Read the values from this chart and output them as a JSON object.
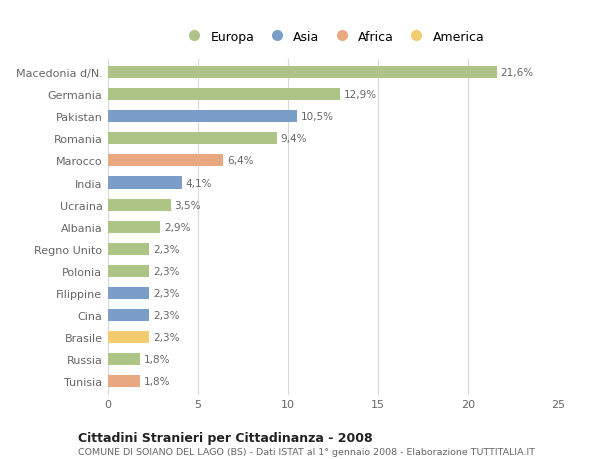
{
  "categories": [
    "Macedonia d/N.",
    "Germania",
    "Pakistan",
    "Romania",
    "Marocco",
    "India",
    "Ucraina",
    "Albania",
    "Regno Unito",
    "Polonia",
    "Filippine",
    "Cina",
    "Brasile",
    "Russia",
    "Tunisia"
  ],
  "values": [
    21.6,
    12.9,
    10.5,
    9.4,
    6.4,
    4.1,
    3.5,
    2.9,
    2.3,
    2.3,
    2.3,
    2.3,
    2.3,
    1.8,
    1.8
  ],
  "labels": [
    "21,6%",
    "12,9%",
    "10,5%",
    "9,4%",
    "6,4%",
    "4,1%",
    "3,5%",
    "2,9%",
    "2,3%",
    "2,3%",
    "2,3%",
    "2,3%",
    "2,3%",
    "1,8%",
    "1,8%"
  ],
  "colors": [
    "#aec487",
    "#aec487",
    "#7b9ec9",
    "#aec487",
    "#e8a882",
    "#7b9ec9",
    "#aec487",
    "#aec487",
    "#aec487",
    "#aec487",
    "#7b9ec9",
    "#7b9ec9",
    "#f2cc6e",
    "#aec487",
    "#e8a882"
  ],
  "legend_labels": [
    "Europa",
    "Asia",
    "Africa",
    "America"
  ],
  "legend_colors": [
    "#aec487",
    "#7b9ec9",
    "#e8a882",
    "#f2cc6e"
  ],
  "title": "Cittadini Stranieri per Cittadinanza - 2008",
  "subtitle": "COMUNE DI SOIANO DEL LAGO (BS) - Dati ISTAT al 1° gennaio 2008 - Elaborazione TUTTITALIA.IT",
  "xlim": [
    0,
    25
  ],
  "xticks": [
    0,
    5,
    10,
    15,
    20,
    25
  ],
  "bg_color": "#ffffff",
  "grid_color": "#d8d8d8"
}
